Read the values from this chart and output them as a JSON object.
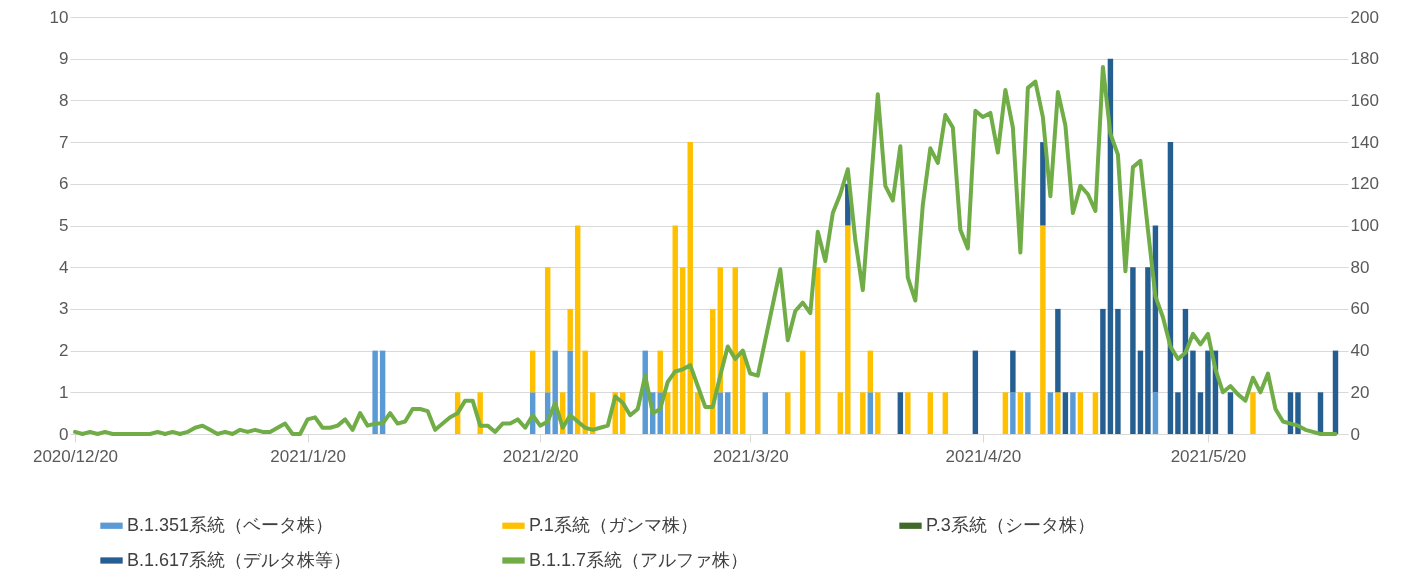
{
  "chart_data": {
    "type": "bar",
    "stacked": true,
    "grid": "y",
    "legend": "bottom",
    "x": [
      "2020-12-20",
      "2020-12-21",
      "2020-12-22",
      "2020-12-23",
      "2020-12-24",
      "2020-12-25",
      "2020-12-26",
      "2020-12-27",
      "2020-12-28",
      "2020-12-29",
      "2020-12-30",
      "2020-12-31",
      "2021-01-01",
      "2021-01-02",
      "2021-01-03",
      "2021-01-04",
      "2021-01-05",
      "2021-01-06",
      "2021-01-07",
      "2021-01-08",
      "2021-01-09",
      "2021-01-10",
      "2021-01-11",
      "2021-01-12",
      "2021-01-13",
      "2021-01-14",
      "2021-01-15",
      "2021-01-16",
      "2021-01-17",
      "2021-01-18",
      "2021-01-19",
      "2021-01-20",
      "2021-01-21",
      "2021-01-22",
      "2021-01-23",
      "2021-01-24",
      "2021-01-25",
      "2021-01-26",
      "2021-01-27",
      "2021-01-28",
      "2021-01-29",
      "2021-01-30",
      "2021-01-31",
      "2021-02-01",
      "2021-02-02",
      "2021-02-03",
      "2021-02-04",
      "2021-02-05",
      "2021-02-06",
      "2021-02-07",
      "2021-02-08",
      "2021-02-09",
      "2021-02-10",
      "2021-02-11",
      "2021-02-12",
      "2021-02-13",
      "2021-02-14",
      "2021-02-15",
      "2021-02-16",
      "2021-02-17",
      "2021-02-18",
      "2021-02-19",
      "2021-02-20",
      "2021-02-21",
      "2021-02-22",
      "2021-02-23",
      "2021-02-24",
      "2021-02-25",
      "2021-02-26",
      "2021-02-27",
      "2021-02-28",
      "2021-03-01",
      "2021-03-02",
      "2021-03-03",
      "2021-03-04",
      "2021-03-05",
      "2021-03-06",
      "2021-03-07",
      "2021-03-08",
      "2021-03-09",
      "2021-03-10",
      "2021-03-11",
      "2021-03-12",
      "2021-03-13",
      "2021-03-14",
      "2021-03-15",
      "2021-03-16",
      "2021-03-17",
      "2021-03-18",
      "2021-03-19",
      "2021-03-20",
      "2021-03-21",
      "2021-03-22",
      "2021-03-23",
      "2021-03-24",
      "2021-03-25",
      "2021-03-26",
      "2021-03-27",
      "2021-03-28",
      "2021-03-29",
      "2021-03-30",
      "2021-03-31",
      "2021-04-01",
      "2021-04-02",
      "2021-04-03",
      "2021-04-04",
      "2021-04-05",
      "2021-04-06",
      "2021-04-07",
      "2021-04-08",
      "2021-04-09",
      "2021-04-10",
      "2021-04-11",
      "2021-04-12",
      "2021-04-13",
      "2021-04-14",
      "2021-04-15",
      "2021-04-16",
      "2021-04-17",
      "2021-04-18",
      "2021-04-19",
      "2021-04-20",
      "2021-04-21",
      "2021-04-22",
      "2021-04-23",
      "2021-04-24",
      "2021-04-25",
      "2021-04-26",
      "2021-04-27",
      "2021-04-28",
      "2021-04-29",
      "2021-04-30",
      "2021-05-01",
      "2021-05-02",
      "2021-05-03",
      "2021-05-04",
      "2021-05-05",
      "2021-05-06",
      "2021-05-07",
      "2021-05-08",
      "2021-05-09",
      "2021-05-10",
      "2021-05-11",
      "2021-05-12",
      "2021-05-13",
      "2021-05-14",
      "2021-05-15",
      "2021-05-16",
      "2021-05-17",
      "2021-05-18",
      "2021-05-19",
      "2021-05-20",
      "2021-05-21",
      "2021-05-22",
      "2021-05-23",
      "2021-05-24",
      "2021-05-25",
      "2021-05-26",
      "2021-05-27",
      "2021-05-28",
      "2021-05-29",
      "2021-05-30",
      "2021-05-31",
      "2021-06-01",
      "2021-06-02",
      "2021-06-03",
      "2021-06-04",
      "2021-06-05",
      "2021-06-06"
    ],
    "xlim": [
      "2020-12-20",
      "2021-06-07"
    ],
    "xticks": [
      {
        "value": "2020-12-20",
        "label": "2020/12/20"
      },
      {
        "value": "2021-01-20",
        "label": "2021/1/20"
      },
      {
        "value": "2021-02-20",
        "label": "2021/2/20"
      },
      {
        "value": "2021-03-20",
        "label": "2021/3/20"
      },
      {
        "value": "2021-04-20",
        "label": "2021/4/20"
      },
      {
        "value": "2021-05-20",
        "label": "2021/5/20"
      }
    ],
    "ylim": [
      0,
      10
    ],
    "yticks": [
      0,
      1,
      2,
      3,
      4,
      5,
      6,
      7,
      8,
      9,
      10
    ],
    "y2lim": [
      0,
      200
    ],
    "y2ticks": [
      0,
      20,
      40,
      60,
      80,
      100,
      120,
      140,
      160,
      180,
      200
    ],
    "series": [
      {
        "name": "B.1.351系統（ベータ株）",
        "color": "#5b9bd5",
        "values": [
          null,
          null,
          null,
          null,
          null,
          null,
          null,
          null,
          null,
          null,
          null,
          null,
          null,
          null,
          null,
          null,
          null,
          null,
          null,
          null,
          null,
          null,
          null,
          null,
          null,
          null,
          null,
          null,
          null,
          null,
          null,
          null,
          null,
          null,
          null,
          null,
          null,
          null,
          null,
          null,
          2,
          2,
          null,
          null,
          null,
          null,
          null,
          null,
          null,
          null,
          null,
          null,
          null,
          null,
          null,
          null,
          null,
          null,
          null,
          null,
          null,
          1,
          null,
          1,
          2,
          null,
          2,
          null,
          null,
          null,
          null,
          null,
          null,
          null,
          null,
          null,
          2,
          1,
          1,
          null,
          null,
          null,
          null,
          null,
          null,
          null,
          1,
          1,
          null,
          null,
          null,
          null,
          1,
          null,
          null,
          null,
          null,
          null,
          null,
          null,
          null,
          null,
          null,
          null,
          null,
          null,
          1,
          null,
          null,
          null,
          null,
          null,
          null,
          null,
          null,
          null,
          null,
          null,
          null,
          null,
          null,
          null,
          null,
          null,
          null,
          1,
          null,
          1,
          null,
          null,
          1,
          null,
          null,
          1,
          null,
          null,
          null,
          null,
          null,
          null,
          null,
          null,
          null,
          null,
          1,
          null,
          null,
          null,
          null,
          null,
          null,
          null,
          null,
          null,
          null,
          null,
          null,
          null,
          null,
          null,
          null,
          null,
          null,
          null,
          null,
          null,
          null,
          null,
          null
        ]
      },
      {
        "name": "P.1系統（ガンマ株）",
        "color": "#ffc000",
        "values": [
          null,
          null,
          null,
          null,
          null,
          null,
          null,
          null,
          null,
          null,
          null,
          null,
          null,
          null,
          null,
          null,
          null,
          null,
          null,
          null,
          null,
          null,
          null,
          null,
          null,
          null,
          null,
          null,
          null,
          null,
          null,
          null,
          null,
          null,
          null,
          null,
          null,
          null,
          null,
          null,
          null,
          null,
          null,
          null,
          null,
          null,
          null,
          null,
          null,
          null,
          null,
          1,
          null,
          null,
          1,
          null,
          null,
          null,
          null,
          null,
          null,
          1,
          null,
          3,
          null,
          1,
          1,
          5,
          2,
          1,
          null,
          null,
          1,
          1,
          null,
          null,
          null,
          null,
          1,
          1,
          5,
          4,
          7,
          1,
          null,
          3,
          3,
          null,
          4,
          2,
          null,
          null,
          null,
          null,
          null,
          1,
          null,
          2,
          null,
          4,
          null,
          null,
          1,
          5,
          null,
          1,
          1,
          1,
          null,
          null,
          null,
          1,
          null,
          null,
          1,
          null,
          1,
          null,
          null,
          null,
          null,
          null,
          null,
          null,
          1,
          null,
          1,
          null,
          null,
          5,
          null,
          1,
          null,
          null,
          1,
          null,
          1,
          null,
          null,
          null,
          null,
          null,
          null,
          null,
          null,
          null,
          null,
          null,
          null,
          null,
          null,
          null,
          null,
          null,
          null,
          null,
          null,
          1,
          null,
          null,
          null,
          null,
          null,
          null,
          null,
          null,
          null,
          null,
          null
        ]
      },
      {
        "name": "P.3系統（シータ株）",
        "color": "#3f6a2a",
        "values": [
          null,
          null,
          null,
          null,
          null,
          null,
          null,
          null,
          null,
          null,
          null,
          null,
          null,
          null,
          null,
          null,
          null,
          null,
          null,
          null,
          null,
          null,
          null,
          null,
          null,
          null,
          null,
          null,
          null,
          null,
          null,
          null,
          null,
          null,
          null,
          null,
          null,
          null,
          null,
          null,
          null,
          null,
          null,
          null,
          null,
          null,
          null,
          null,
          null,
          null,
          null,
          null,
          null,
          null,
          null,
          null,
          null,
          null,
          null,
          null,
          null,
          null,
          null,
          null,
          null,
          null,
          null,
          null,
          null,
          null,
          null,
          null,
          null,
          null,
          null,
          null,
          null,
          null,
          null,
          null,
          null,
          null,
          null,
          null,
          null,
          null,
          null,
          null,
          null,
          null,
          null,
          null,
          null,
          null,
          null,
          null,
          null,
          null,
          null,
          null,
          null,
          null,
          null,
          null,
          null,
          null,
          null,
          null,
          null,
          null,
          null,
          null,
          null,
          null,
          null,
          null,
          null,
          null,
          null,
          null,
          null,
          null,
          null,
          null,
          null,
          null,
          null,
          null,
          null,
          null,
          null,
          null,
          null,
          null,
          null,
          null,
          null,
          null,
          null,
          null,
          null,
          null,
          null,
          null,
          null,
          null,
          null,
          null,
          null,
          null,
          null,
          null,
          null,
          null,
          null,
          null,
          null,
          null,
          null,
          null,
          null,
          null,
          null,
          null,
          null,
          null,
          null,
          null,
          null
        ]
      },
      {
        "name": "B.1.617系統（デルタ株等）",
        "color": "#255e91",
        "values": [
          null,
          null,
          null,
          null,
          null,
          null,
          null,
          null,
          null,
          null,
          null,
          null,
          null,
          null,
          null,
          null,
          null,
          null,
          null,
          null,
          null,
          null,
          null,
          null,
          null,
          null,
          null,
          null,
          null,
          null,
          null,
          null,
          null,
          null,
          null,
          null,
          null,
          null,
          null,
          null,
          null,
          null,
          null,
          null,
          null,
          null,
          null,
          null,
          null,
          null,
          null,
          null,
          null,
          null,
          null,
          null,
          null,
          null,
          null,
          null,
          null,
          null,
          null,
          null,
          null,
          null,
          null,
          null,
          null,
          null,
          null,
          null,
          null,
          null,
          null,
          null,
          null,
          null,
          null,
          null,
          null,
          null,
          null,
          null,
          null,
          null,
          null,
          null,
          null,
          null,
          null,
          null,
          null,
          null,
          null,
          null,
          null,
          null,
          null,
          null,
          null,
          null,
          null,
          1,
          null,
          null,
          null,
          null,
          null,
          null,
          1,
          null,
          null,
          null,
          null,
          null,
          null,
          null,
          null,
          null,
          2,
          null,
          null,
          null,
          null,
          1,
          null,
          null,
          null,
          2,
          null,
          2,
          1,
          null,
          null,
          null,
          null,
          3,
          9,
          3,
          null,
          4,
          2,
          4,
          4,
          null,
          7,
          1,
          3,
          2,
          1,
          2,
          2,
          null,
          1,
          null,
          null,
          null,
          null,
          null,
          null,
          null,
          1,
          1,
          null,
          null,
          1,
          null,
          2
        ]
      },
      {
        "name": "B.1.1.7系統（アルファ株）",
        "type": "line",
        "axis": "y2",
        "color": "#70ad47",
        "values": [
          1,
          0,
          1,
          0,
          1,
          0,
          0,
          0,
          0,
          0,
          0,
          1,
          0,
          1,
          0,
          1,
          3,
          4,
          2,
          0,
          1,
          0,
          2,
          1,
          2,
          1,
          1,
          3,
          5,
          0,
          0,
          7,
          8,
          3,
          3,
          4,
          7,
          2,
          10,
          4,
          5,
          5,
          10,
          5,
          6,
          12,
          12,
          11,
          2,
          5,
          8,
          10,
          16,
          16,
          4,
          4,
          1,
          5,
          5,
          7,
          3,
          9,
          4,
          6,
          15,
          3,
          9,
          6,
          3,
          2,
          3,
          4,
          18,
          15,
          9,
          12,
          28,
          10,
          12,
          25,
          30,
          31,
          33,
          23,
          13,
          13,
          28,
          42,
          36,
          40,
          29,
          28,
          45,
          62,
          79,
          45,
          59,
          63,
          58,
          97,
          83,
          106,
          115,
          127,
          93,
          69,
          116,
          163,
          119,
          112,
          138,
          75,
          64,
          110,
          137,
          130,
          153,
          147,
          98,
          89,
          155,
          152,
          154,
          135,
          165,
          147,
          87,
          166,
          169,
          152,
          114,
          164,
          148,
          106,
          119,
          115,
          107,
          176,
          144,
          134,
          78,
          128,
          131,
          98,
          66,
          56,
          42,
          36,
          39,
          48,
          43,
          48,
          31,
          20,
          23,
          19,
          16,
          27,
          20,
          29,
          12,
          6,
          5,
          4,
          2,
          1,
          0,
          0,
          0
        ]
      }
    ]
  }
}
